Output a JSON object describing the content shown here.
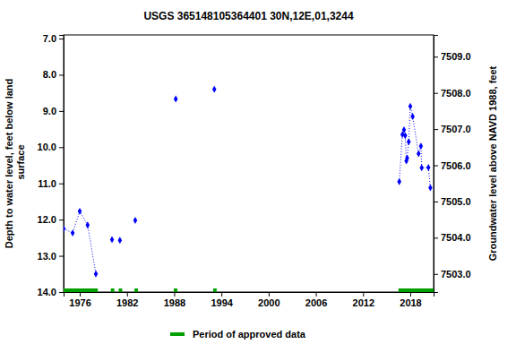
{
  "chart_data": {
    "type": "scatter",
    "title": "USGS 365148105364401 30N,12E,01,3244",
    "x_label": "",
    "y_label": "Depth to water level, feet below land surface",
    "y2_label": "Groundwater level above NAVD 1988, feet",
    "xlim": [
      1973.95,
      2020.96
    ],
    "xticks": [
      1976,
      1982,
      1988,
      1994,
      2000,
      2006,
      2012,
      2018
    ],
    "ylim": [
      6.9,
      14.0
    ],
    "yticks": [
      {
        "value": 7,
        "label": "7.0"
      },
      {
        "value": 8,
        "label": "8.0"
      },
      {
        "value": 9,
        "label": "9.0"
      },
      {
        "value": 10,
        "label": "10.0"
      },
      {
        "value": 11,
        "label": "11.0"
      },
      {
        "value": 12,
        "label": "12.0"
      },
      {
        "value": 13,
        "label": "13.0"
      },
      {
        "value": 14,
        "label": "14.0"
      }
    ],
    "y2lim": [
      7509.6,
      7502.5
    ],
    "y2ticks": [
      {
        "value": 7503,
        "label": "7503.0"
      },
      {
        "value": 7504,
        "label": "7504.0"
      },
      {
        "value": 7505,
        "label": "7505.0"
      },
      {
        "value": 7506,
        "label": "7506.0"
      },
      {
        "value": 7507,
        "label": "7507.0"
      },
      {
        "value": 7508,
        "label": "7508.0"
      },
      {
        "value": 7509,
        "label": "7509.0"
      }
    ],
    "grid": false,
    "series": [
      {
        "name": "Depth to water level",
        "color": "#0000ff",
        "marker": "diamond",
        "line_style": "dotted",
        "x": [
          1973.95,
          1975.1,
          1976.0,
          1977.0,
          1978.05,
          1979.0,
          1980.1,
          1980.6,
          1981.1,
          1982.0,
          1983.05,
          1985.0,
          1988.2,
          1990.0,
          1993.1,
          2005.0,
          2016.6,
          2017.0,
          2017.2,
          2017.35,
          2017.5,
          2017.6,
          2017.8,
          2018.0,
          2018.3,
          2019.05,
          2019.35,
          2019.45,
          2020.3,
          2020.55
        ],
        "values": [
          12.25,
          12.37,
          11.77,
          12.15,
          13.5,
          null,
          12.55,
          null,
          12.57,
          null,
          12.02,
          null,
          8.67,
          null,
          8.4,
          null,
          10.95,
          9.65,
          9.52,
          9.68,
          10.38,
          10.3,
          9.85,
          8.87,
          9.15,
          10.18,
          9.97,
          10.57,
          10.56,
          11.12
        ]
      }
    ],
    "approved_periods": {
      "name": "Period of approved data",
      "color": "#00a000",
      "ranges": [
        [
          1973.95,
          1978.3
        ],
        [
          1979.95,
          1980.4
        ],
        [
          1980.95,
          1981.4
        ],
        [
          1982.95,
          1983.4
        ],
        [
          1987.95,
          1988.4
        ],
        [
          1992.95,
          1993.4
        ],
        [
          2016.5,
          2020.96
        ]
      ]
    }
  }
}
